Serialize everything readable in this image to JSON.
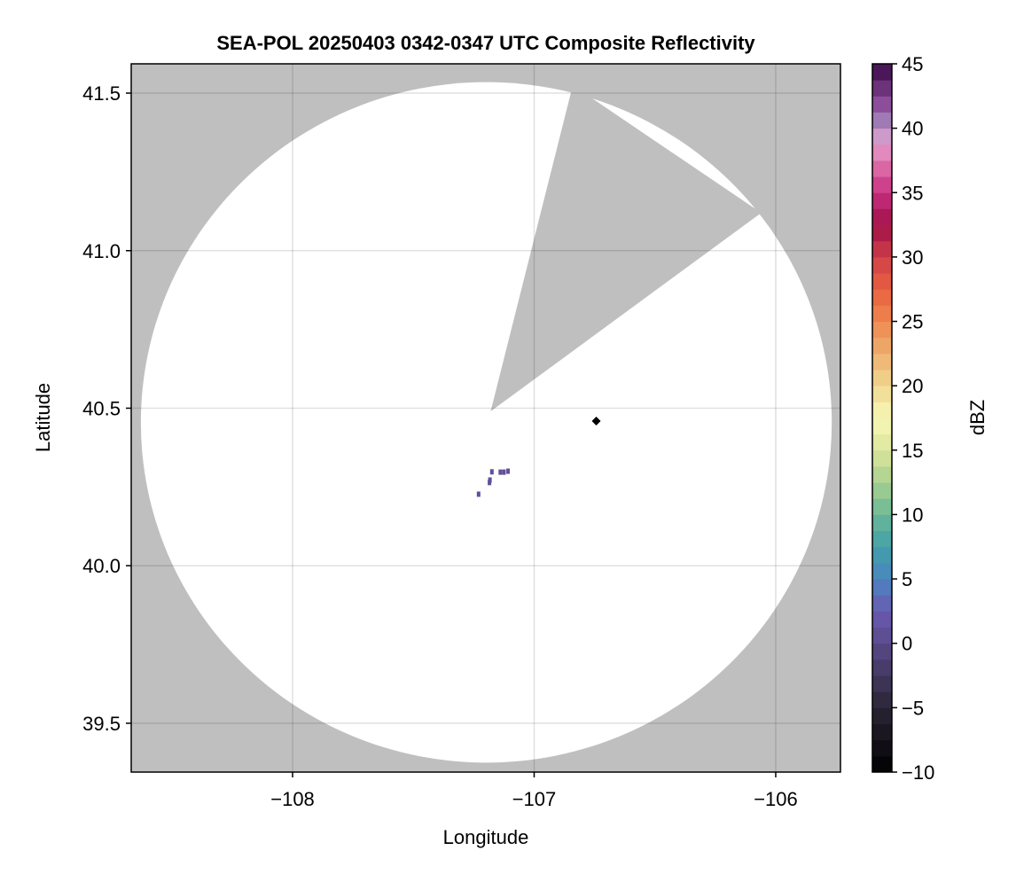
{
  "chart_data": {
    "type": "heatmap",
    "title": "SEA-POL 20250403 0342-0347 UTC Composite Reflectivity",
    "xlabel": "Longitude",
    "ylabel": "Latitude",
    "xlim": [
      -108.668,
      -105.732
    ],
    "ylim": [
      39.345,
      41.593
    ],
    "xticks": [
      -108,
      -107,
      -106
    ],
    "xtick_labels": [
      "−108",
      "−107",
      "−106"
    ],
    "yticks": [
      39.5,
      40.0,
      40.5,
      41.0,
      41.5
    ],
    "ytick_labels": [
      "39.5",
      "40.0",
      "40.5",
      "41.0",
      "41.5"
    ],
    "grid": true,
    "background_color": "#bfbfbf",
    "coverage_color": "#ffffff",
    "radar_coverage": {
      "center": {
        "lon": -107.198,
        "lat": 40.455
      },
      "radius_lon_deg": 1.43,
      "radius_lat_deg": 1.08,
      "blocked_sector": [
        {
          "lon": -107.18,
          "lat": 40.49
        },
        {
          "lon": -106.84,
          "lat": 41.525
        },
        {
          "lon": -106.06,
          "lat": 41.12
        }
      ]
    },
    "radar_site": {
      "lon": -106.743,
      "lat": 40.459,
      "marker": "diamond",
      "color": "#000000"
    },
    "echoes": [
      {
        "lon": -107.183,
        "lat": 40.272,
        "dbz": 1
      },
      {
        "lon": -107.185,
        "lat": 40.264,
        "dbz": 1
      },
      {
        "lon": -107.14,
        "lat": 40.297,
        "dbz": 1
      },
      {
        "lon": -107.125,
        "lat": 40.297,
        "dbz": 1
      },
      {
        "lon": -107.108,
        "lat": 40.3,
        "dbz": 1
      },
      {
        "lon": -107.175,
        "lat": 40.298,
        "dbz": 1
      },
      {
        "lon": -107.23,
        "lat": 40.227,
        "dbz": 1
      }
    ],
    "colorbar": {
      "label": "dBZ",
      "range": [
        -10,
        45
      ],
      "ticks": [
        -10,
        -5,
        0,
        5,
        10,
        15,
        20,
        25,
        30,
        35,
        40,
        45
      ],
      "tick_labels": [
        "−10",
        "−5",
        "0",
        "5",
        "10",
        "15",
        "20",
        "25",
        "30",
        "35",
        "40",
        "45"
      ],
      "colormap_stops": [
        [
          -10,
          "#000000"
        ],
        [
          -5,
          "#2a2535"
        ],
        [
          0,
          "#5a4a8a"
        ],
        [
          2.5,
          "#6a5ab0"
        ],
        [
          5,
          "#4a85c0"
        ],
        [
          7.5,
          "#40a0a8"
        ],
        [
          10,
          "#6ab898"
        ],
        [
          12.5,
          "#a8d090"
        ],
        [
          15,
          "#dce59a"
        ],
        [
          17.5,
          "#f8f8b8"
        ],
        [
          20,
          "#f0d890"
        ],
        [
          22.5,
          "#eeb070"
        ],
        [
          25,
          "#ee8850"
        ],
        [
          27.5,
          "#e86040"
        ],
        [
          30,
          "#d04048"
        ],
        [
          32.5,
          "#a01048"
        ],
        [
          35,
          "#c83080"
        ],
        [
          37.5,
          "#e078b0"
        ],
        [
          39,
          "#e4a0d0"
        ],
        [
          40,
          "#a890c0"
        ],
        [
          42,
          "#8a4a98"
        ],
        [
          45,
          "#3a0a48"
        ]
      ]
    }
  }
}
